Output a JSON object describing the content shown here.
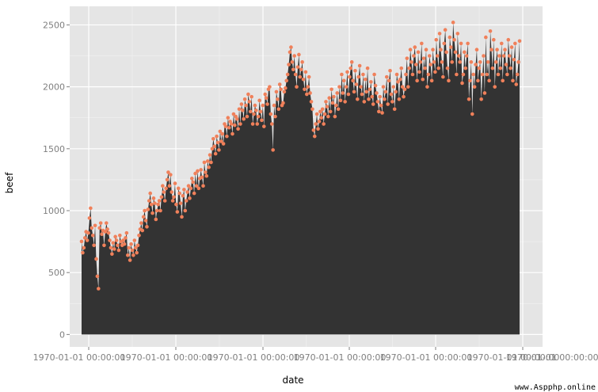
{
  "chart_data": {
    "type": "area",
    "title": "",
    "xlabel": "date",
    "ylabel": "beef",
    "ylim": [
      -100,
      2650
    ],
    "y_ticks": [
      0,
      500,
      1000,
      1500,
      2000,
      2500
    ],
    "y_tick_labels": [
      "0",
      "500",
      "1000",
      "1500",
      "2000",
      "2500"
    ],
    "x_tick_labels": [
      "1970-01-01 00:00:00",
      "1970-01-01 00:00:00",
      "1970-01-01 00:00:00",
      "1970-01-01 00:00:00",
      "1970-01-01 00:00:00",
      "1970-01-01 00:00:00",
      "1970-01-01 00:00:00.000735"
    ],
    "grid": true,
    "fill_color": "#333333",
    "point_color": "#F0805A",
    "panel_color": "#E5E5E5",
    "series": [
      {
        "values": [
          751,
          660,
          700,
          780,
          830,
          760,
          820,
          940,
          1020,
          860,
          800,
          720,
          880,
          610,
          470,
          370,
          860,
          900,
          810,
          840,
          720,
          830,
          900,
          850,
          820,
          760,
          700,
          650,
          740,
          690,
          790,
          760,
          720,
          680,
          800,
          750,
          720,
          760,
          730,
          780,
          820,
          640,
          700,
          600,
          730,
          680,
          640,
          760,
          700,
          660,
          720,
          800,
          850,
          900,
          840,
          950,
          1000,
          920,
          870,
          1010,
          1080,
          1140,
          1050,
          980,
          1100,
          1060,
          930,
          1000,
          1050,
          1080,
          1000,
          1110,
          1200,
          1150,
          1080,
          1180,
          1250,
          1310,
          1200,
          1290,
          1150,
          1080,
          1110,
          1220,
          1050,
          990,
          1180,
          1140,
          1060,
          950,
          1120,
          1170,
          1000,
          1080,
          1150,
          1200,
          1100,
          1180,
          1260,
          1230,
          1140,
          1300,
          1200,
          1320,
          1180,
          1260,
          1330,
          1270,
          1200,
          1390,
          1310,
          1280,
          1400,
          1350,
          1450,
          1390,
          1500,
          1580,
          1520,
          1460,
          1600,
          1550,
          1490,
          1640,
          1560,
          1620,
          1540,
          1700,
          1680,
          1600,
          1750,
          1670,
          1720,
          1700,
          1620,
          1780,
          1690,
          1760,
          1740,
          1660,
          1820,
          1700,
          1860,
          1810,
          1740,
          1900,
          1850,
          1760,
          1940,
          1880,
          1800,
          1920,
          1700,
          1780,
          1850,
          1810,
          1700,
          1760,
          1890,
          1800,
          1730,
          1850,
          1680,
          1940,
          1910,
          1860,
          1980,
          2000,
          1780,
          1700,
          1490,
          1850,
          1760,
          1960,
          1900,
          1820,
          2020,
          1980,
          1850,
          1870,
          1960,
          1990,
          2050,
          2100,
          2180,
          2280,
          2320,
          2200,
          2140,
          2250,
          2100,
          2000,
          2160,
          2260,
          2080,
          2140,
          2200,
          2060,
          1980,
          2120,
          1940,
          2000,
          2080,
          1950,
          1880,
          1820,
          1650,
          1600,
          1700,
          1780,
          1660,
          1720,
          1800,
          1750,
          1820,
          1700,
          1780,
          1880,
          1840,
          1760,
          1910,
          1800,
          1980,
          1870,
          1920,
          1760,
          1850,
          1950,
          1820,
          2000,
          1890,
          2100,
          1950,
          2050,
          1880,
          2000,
          2120,
          1940,
          2080,
          2150,
          2200,
          2050,
          1960,
          2130,
          2020,
          1900,
          2080,
          2170,
          2000,
          1940,
          2100,
          1880,
          2060,
          1960,
          2150,
          1900,
          1980,
          2040,
          1920,
          1860,
          2100,
          2010,
          1950,
          1880,
          1800,
          1920,
          1850,
          1790,
          2000,
          1900,
          1960,
          2080,
          1860,
          2050,
          2130,
          1940,
          1880,
          2000,
          1820,
          1960,
          2100,
          2040,
          1900,
          2060,
          2150,
          2000,
          1920,
          1980,
          2100,
          2230,
          2000,
          2150,
          2300,
          2200,
          2100,
          2250,
          2320,
          2180,
          2050,
          2280,
          2120,
          2200,
          2350,
          2060,
          2230,
          2150,
          2300,
          2000,
          2100,
          2250,
          2180,
          2050,
          2300,
          2200,
          2120,
          2380,
          2250,
          2150,
          2430,
          2300,
          2200,
          2080,
          2350,
          2460,
          2280,
          2150,
          2050,
          2400,
          2320,
          2200,
          2520,
          2380,
          2280,
          2100,
          2430,
          2250,
          2200,
          2350,
          2030,
          2100,
          2280,
          2150,
          2250,
          2350,
          1900,
          2050,
          2200,
          1780,
          2100,
          2000,
          2180,
          2300,
          2050,
          2150,
          2200,
          1900,
          2100,
          2250,
          1950,
          2400,
          2100,
          2200,
          2050,
          2450,
          2300,
          2150,
          2380,
          2000,
          2200,
          2300,
          2100,
          2250,
          2150,
          2350,
          2050,
          2250,
          2300,
          2180,
          2100,
          2380,
          2250,
          2150,
          2320,
          2050,
          2220,
          2350,
          2020,
          2100,
          2200,
          2370
        ]
      }
    ]
  },
  "watermark": "www.Aspphp.online"
}
